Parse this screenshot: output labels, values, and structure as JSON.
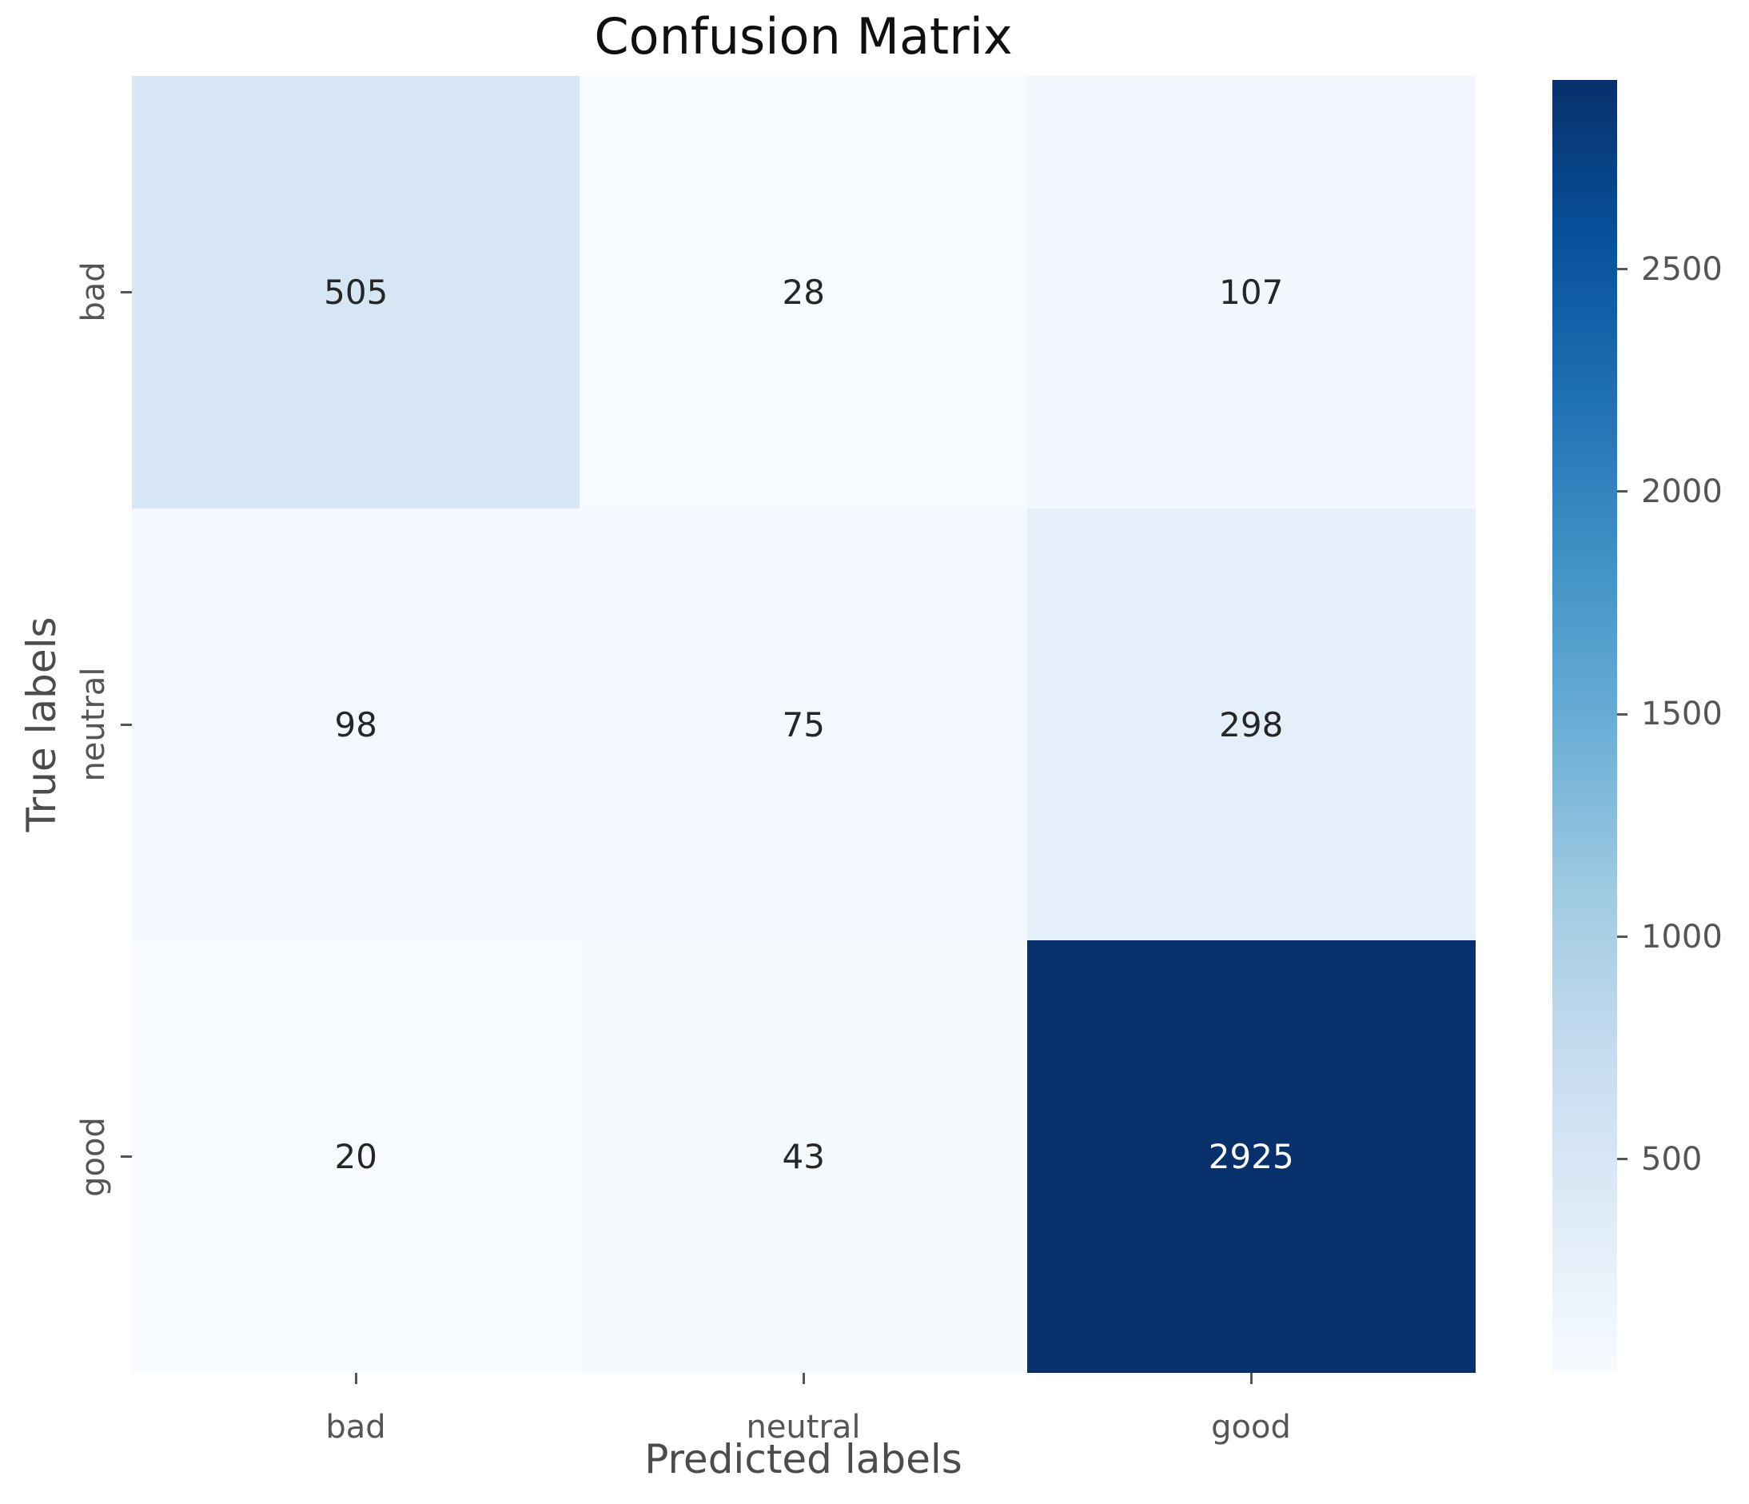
{
  "figure": {
    "background": "#ffffff"
  },
  "chart_data": {
    "type": "heatmap",
    "title": "Confusion Matrix",
    "xlabel": "Predicted labels",
    "ylabel": "True labels",
    "x_tick_labels": [
      "bad",
      "neutral",
      "good"
    ],
    "y_tick_labels": [
      "bad",
      "neutral",
      "good"
    ],
    "matrix": [
      [
        505,
        28,
        107
      ],
      [
        98,
        75,
        298
      ],
      [
        20,
        43,
        2925
      ]
    ],
    "vmin": 20,
    "vmax": 2925,
    "colormap": "Blues",
    "colormap_stops": [
      "#f7fbff",
      "#deebf7",
      "#c6dbef",
      "#9ecae1",
      "#6baed6",
      "#4292c6",
      "#2171b5",
      "#08519c",
      "#08306b"
    ],
    "colorbar_ticks": [
      500,
      1000,
      1500,
      2000,
      2500
    ],
    "grid": false,
    "legend_position": "right-colorbar",
    "colors": {
      "annotation_dark_text": "#262626",
      "annotation_light_text": "#ffffff",
      "tick_color": "#555555",
      "axis_label_color": "#4c4c4c",
      "title_color": "#101010"
    }
  }
}
